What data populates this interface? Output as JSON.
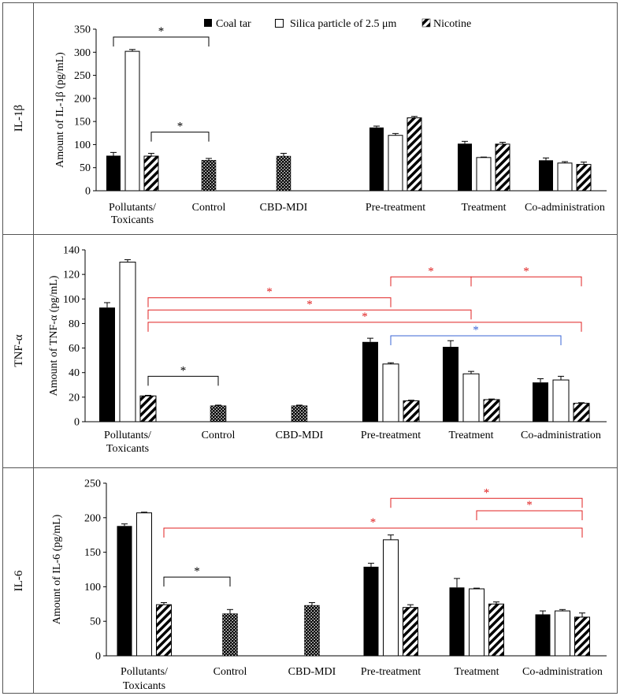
{
  "legend": {
    "coal_tar": "Coal tar",
    "silica": "Silica particle of 2.5 μm",
    "nicotine": "Nicotine"
  },
  "colors": {
    "sig_red": "#e02020",
    "sig_blue": "#3a66d6",
    "bar_black": "#000000"
  },
  "chart_data": [
    {
      "type": "bar",
      "row_label": "IL-1β",
      "ylabel": "Amount of IL-1β (pg/mL)",
      "ylim": [
        0,
        350
      ],
      "yticks": [
        0,
        50,
        100,
        150,
        200,
        250,
        300,
        350
      ],
      "categories": [
        "Pollutants/\nToxicants",
        "Control",
        "CBD-MDI",
        "Pre-treatment",
        "Treatment",
        "Co-administration"
      ],
      "series": [
        {
          "name": "Coal tar",
          "values": [
            76,
            null,
            null,
            137,
            102,
            66
          ],
          "errors": [
            7,
            null,
            null,
            3,
            5,
            5
          ]
        },
        {
          "name": "Silica particle of 2.5 μm",
          "values": [
            302,
            null,
            null,
            120,
            72,
            60
          ],
          "errors": [
            4,
            null,
            null,
            4,
            1,
            3
          ]
        },
        {
          "name": "Nicotine",
          "values": [
            75,
            null,
            null,
            158,
            101,
            57
          ],
          "errors": [
            6,
            null,
            null,
            3,
            4,
            5
          ]
        }
      ],
      "single": [
        null,
        66,
        75,
        null,
        null,
        null
      ],
      "single_errors": [
        null,
        4,
        6,
        null,
        null,
        null
      ],
      "brackets": [
        {
          "x1": "0:0",
          "x2": "1:s",
          "y": 333,
          "label": "*",
          "color": "black"
        },
        {
          "x1": "0:2",
          "x2": "1:s",
          "y": 127,
          "label": "*",
          "color": "black"
        }
      ]
    },
    {
      "type": "bar",
      "row_label": "TNF-α",
      "ylabel": "Amount of TNF-α (pg/mL)",
      "ylim": [
        0,
        140
      ],
      "yticks": [
        0,
        20,
        40,
        60,
        80,
        100,
        120,
        140
      ],
      "categories": [
        "Pollutants/\nToxicants",
        "Control",
        "CBD-MDI",
        "Pre-treatment",
        "Treatment",
        "Co-administration"
      ],
      "series": [
        {
          "name": "Coal tar",
          "values": [
            93,
            null,
            null,
            65,
            61,
            32
          ],
          "errors": [
            4,
            null,
            null,
            3,
            5,
            3
          ]
        },
        {
          "name": "Silica particle of 2.5 μm",
          "values": [
            130,
            null,
            null,
            47,
            39,
            34
          ],
          "errors": [
            2,
            null,
            null,
            1,
            2,
            3
          ]
        },
        {
          "name": "Nicotine",
          "values": [
            21,
            null,
            null,
            17,
            18,
            15
          ],
          "errors": [
            0.5,
            null,
            null,
            0.5,
            0.5,
            0.5
          ]
        }
      ],
      "single": [
        null,
        13,
        13,
        null,
        null,
        null
      ],
      "single_errors": [
        null,
        0.5,
        0.5,
        null,
        null,
        null
      ],
      "brackets": [
        {
          "x1": "3:1",
          "x2": "4:1",
          "y": 118,
          "label": "*",
          "color": "red"
        },
        {
          "x1": "4:1",
          "x2": "5:2",
          "y": 118,
          "label": "*",
          "color": "red"
        },
        {
          "x1": "0:2",
          "x2": "3:1",
          "y": 101,
          "label": "*",
          "color": "red"
        },
        {
          "x1": "0:2",
          "x2": "4:1",
          "y": 91,
          "label": "*",
          "color": "red"
        },
        {
          "x1": "0:2",
          "x2": "5:2",
          "y": 81,
          "label": "*",
          "color": "red"
        },
        {
          "x1": "3:1",
          "x2": "5:1",
          "y": 70,
          "label": "*",
          "color": "blue"
        },
        {
          "x1": "0:2",
          "x2": "1:s",
          "y": 37,
          "label": "*",
          "color": "black"
        }
      ]
    },
    {
      "type": "bar",
      "row_label": "IL-6",
      "ylabel": "Amount of IL-6 (pg/mL)",
      "ylim": [
        0,
        250
      ],
      "yticks": [
        0,
        50,
        100,
        150,
        200,
        250
      ],
      "categories": [
        "Pollutants/\nToxicants",
        "Control",
        "CBD-MDI",
        "Pre-treatment",
        "Treatment",
        "Co-administration"
      ],
      "series": [
        {
          "name": "Coal tar",
          "values": [
            188,
            null,
            null,
            129,
            99,
            60
          ],
          "errors": [
            3,
            null,
            null,
            5,
            13,
            5
          ]
        },
        {
          "name": "Silica particle of 2.5 μm",
          "values": [
            207,
            null,
            null,
            168,
            97,
            65
          ],
          "errors": [
            1,
            null,
            null,
            7,
            1,
            2
          ]
        },
        {
          "name": "Nicotine",
          "values": [
            74,
            null,
            null,
            70,
            75,
            56
          ],
          "errors": [
            3,
            null,
            null,
            4,
            3,
            6
          ]
        }
      ],
      "single": [
        null,
        61,
        73,
        null,
        null,
        null
      ],
      "single_errors": [
        null,
        6,
        4,
        null,
        null,
        null
      ],
      "brackets": [
        {
          "x1": "3:1",
          "x2": "5:2",
          "y": 228,
          "label": "*",
          "color": "red"
        },
        {
          "x1": "4:1",
          "x2": "5:2",
          "y": 210,
          "label": "*",
          "color": "red"
        },
        {
          "x1": "0:2",
          "x2": "5:2",
          "y": 185,
          "label": "*",
          "color": "red"
        },
        {
          "x1": "0:2",
          "x2": "1:s",
          "y": 114,
          "label": "*",
          "color": "black"
        }
      ]
    }
  ]
}
